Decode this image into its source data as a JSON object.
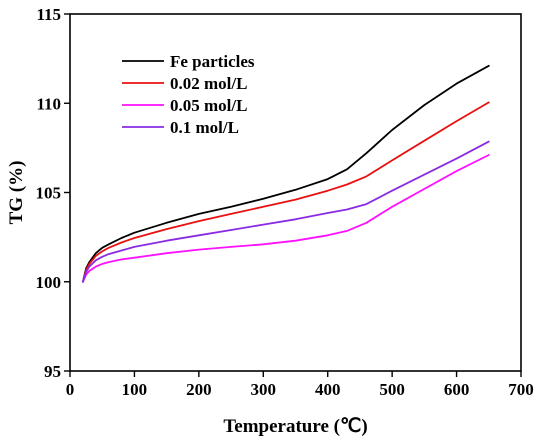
{
  "chart_data": {
    "type": "line",
    "title": "",
    "xlabel": "Temperature (℃)",
    "ylabel": "TG (%)",
    "xlim": [
      0,
      700
    ],
    "ylim": [
      95,
      115
    ],
    "xticks": [
      0,
      100,
      200,
      300,
      400,
      500,
      600,
      700
    ],
    "yticks": [
      95,
      100,
      105,
      110,
      115
    ],
    "grid": false,
    "legend_position": "top-left",
    "series": [
      {
        "name": "Fe particles",
        "color": "#000000",
        "x": [
          20,
          25,
          30,
          40,
          50,
          60,
          80,
          100,
          150,
          200,
          250,
          300,
          350,
          400,
          430,
          460,
          500,
          550,
          600,
          650
        ],
        "y": [
          100.0,
          100.75,
          101.1,
          101.6,
          101.9,
          102.1,
          102.45,
          102.75,
          103.3,
          103.8,
          104.2,
          104.65,
          105.15,
          105.75,
          106.3,
          107.2,
          108.5,
          109.9,
          111.1,
          112.1
        ]
      },
      {
        "name": "0.02 mol/L",
        "color": "#e81010",
        "x": [
          20,
          25,
          30,
          40,
          50,
          60,
          80,
          100,
          150,
          200,
          250,
          300,
          350,
          400,
          430,
          460,
          500,
          550,
          600,
          650
        ],
        "y": [
          100.0,
          100.65,
          101.0,
          101.45,
          101.7,
          101.9,
          102.2,
          102.45,
          102.95,
          103.4,
          103.8,
          104.2,
          104.6,
          105.1,
          105.45,
          105.9,
          106.8,
          107.9,
          109.0,
          110.05
        ]
      },
      {
        "name": "0.05 mol/L",
        "color": "#ff10ff",
        "x": [
          20,
          25,
          30,
          40,
          50,
          60,
          80,
          100,
          150,
          200,
          250,
          300,
          350,
          400,
          430,
          460,
          500,
          550,
          600,
          650
        ],
        "y": [
          100.0,
          100.4,
          100.6,
          100.85,
          101.0,
          101.1,
          101.25,
          101.35,
          101.6,
          101.8,
          101.95,
          102.1,
          102.3,
          102.6,
          102.85,
          103.3,
          104.2,
          105.2,
          106.2,
          107.1
        ]
      },
      {
        "name": "0.1 mol/L",
        "color": "#8a2be2",
        "x": [
          20,
          25,
          30,
          40,
          50,
          60,
          80,
          100,
          150,
          200,
          250,
          300,
          350,
          400,
          430,
          460,
          500,
          550,
          600,
          650
        ],
        "y": [
          100.0,
          100.55,
          100.85,
          101.2,
          101.4,
          101.55,
          101.75,
          101.95,
          102.3,
          102.6,
          102.9,
          103.2,
          103.5,
          103.85,
          104.05,
          104.35,
          105.1,
          106.0,
          106.9,
          107.85
        ]
      }
    ]
  }
}
